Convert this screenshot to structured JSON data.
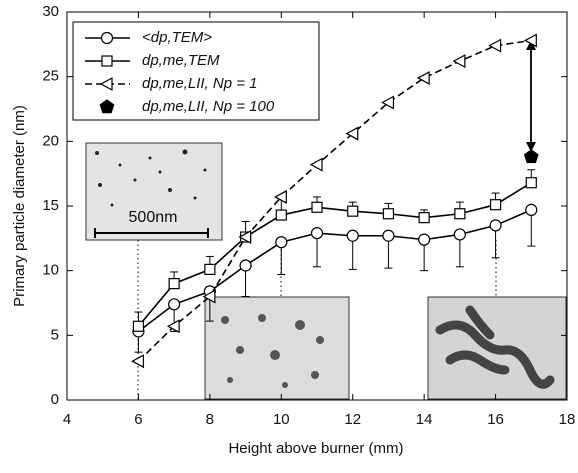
{
  "chart_data": {
    "type": "line",
    "xlabel": "Height above burner (mm)",
    "ylabel": "Primary particle diameter (nm)",
    "x": [
      6,
      7,
      8,
      9,
      10,
      11,
      12,
      13,
      14,
      15,
      16,
      17
    ],
    "xlim": [
      4,
      18
    ],
    "xticks": [
      4,
      6,
      8,
      10,
      12,
      14,
      16,
      18
    ],
    "ylim": [
      0,
      30
    ],
    "yticks": [
      0,
      5,
      10,
      15,
      20,
      25,
      30
    ],
    "series": [
      {
        "name": "<dp,TEM>",
        "color": "#000000",
        "marker": "circle",
        "linestyle": "solid",
        "values": [
          5.3,
          7.4,
          8.4,
          10.4,
          12.2,
          12.9,
          12.7,
          12.7,
          12.4,
          12.8,
          13.5,
          14.7
        ],
        "errors_lower": [
          1.6,
          2.1,
          2.3,
          2.4,
          2.5,
          2.6,
          2.6,
          2.5,
          2.4,
          2.5,
          2.5,
          2.8
        ]
      },
      {
        "name": "dp,me,TEM",
        "color": "#000000",
        "marker": "square",
        "linestyle": "solid",
        "values": [
          5.7,
          9.0,
          10.1,
          12.6,
          14.3,
          14.9,
          14.6,
          14.4,
          14.1,
          14.4,
          15.1,
          16.8
        ],
        "errors_upper": [
          1.1,
          0.9,
          1.0,
          1.2,
          1.3,
          0.8,
          0.7,
          0.8,
          0.6,
          0.9,
          0.9,
          1.0
        ]
      },
      {
        "name": "dp,me,LII, Np = 1",
        "color": "#000000",
        "marker": "triangle-left",
        "linestyle": "dashed",
        "values": [
          3.0,
          5.7,
          8.0,
          12.6,
          15.7,
          18.2,
          20.6,
          23.0,
          24.9,
          26.2,
          27.4,
          27.8
        ]
      },
      {
        "name": "dp,me,LII, Np = 100",
        "color": "#000000",
        "marker": "pentagon",
        "linestyle": "none",
        "values": [
          null,
          null,
          null,
          null,
          null,
          null,
          null,
          null,
          null,
          null,
          null,
          18.8
        ]
      }
    ],
    "scale_label": "500nm"
  }
}
